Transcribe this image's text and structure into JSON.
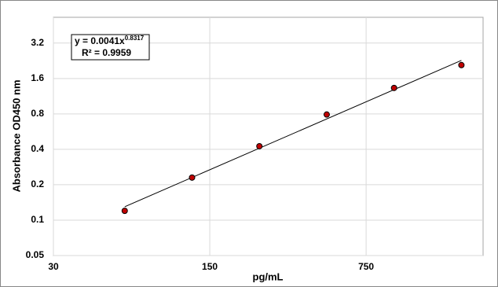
{
  "chart_data": {
    "type": "scatter",
    "xlabel": "pg/mL",
    "ylabel": "Absorbance OD450 nm",
    "equation": "y = 0.0041x",
    "equation_exponent": "0.8317",
    "r_squared": "R² = 0.9959",
    "xscale": "log",
    "yscale": "log",
    "grid": true,
    "xlim": [
      30,
      2500
    ],
    "xticks": [
      30,
      150,
      750
    ],
    "ylim": [
      0.05,
      5.3
    ],
    "yticks": [
      0.05,
      0.1,
      0.2,
      0.4,
      0.8,
      1.6,
      3.2
    ],
    "series": [
      {
        "mode": "markers",
        "color": "#c00000",
        "x": [
          62.5,
          125,
          250,
          500,
          1000,
          2000
        ],
        "values": [
          0.12,
          0.23,
          0.425,
          0.79,
          1.33,
          2.08
        ]
      },
      {
        "mode": "line",
        "color": "#000000",
        "x": [
          62.5,
          2000
        ],
        "values": [
          0.13,
          2.28
        ]
      }
    ]
  }
}
